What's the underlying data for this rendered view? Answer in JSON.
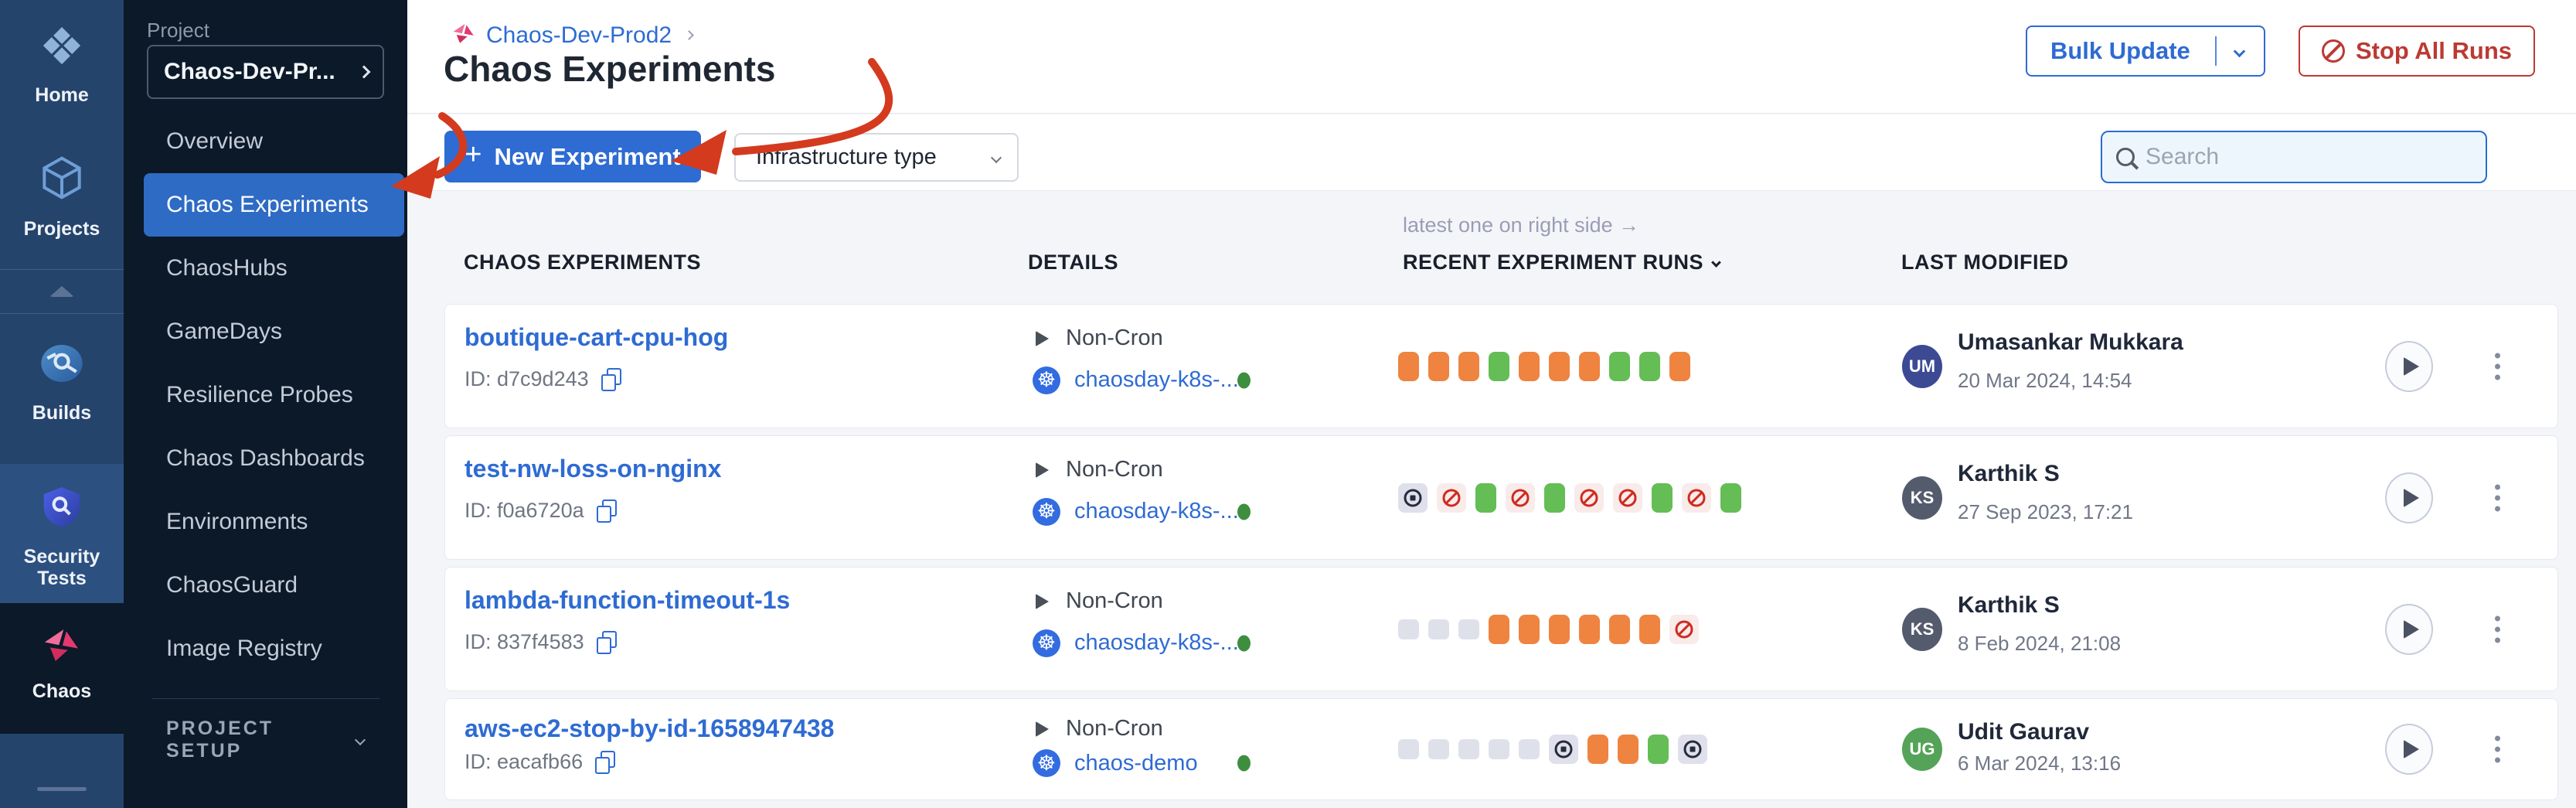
{
  "rail": {
    "items": [
      {
        "label": "Home",
        "icon": "harness-home-icon"
      },
      {
        "label": "Projects",
        "icon": "projects-cube-icon"
      },
      {
        "label": "Builds",
        "icon": "builds-circle-icon"
      },
      {
        "label": "Security Tests",
        "icon": "security-shield-icon"
      },
      {
        "label": "Chaos",
        "icon": "chaos-pinwheel-icon"
      }
    ]
  },
  "sidebar": {
    "project_label": "Project",
    "project_selector": "Chaos-Dev-Pr...",
    "items": [
      "Overview",
      "Chaos Experiments",
      "ChaosHubs",
      "GameDays",
      "Resilience Probes",
      "Chaos Dashboards",
      "Environments",
      "ChaosGuard",
      "Image Registry"
    ],
    "selected": "Chaos Experiments",
    "project_setup_label": "PROJECT SETUP"
  },
  "header": {
    "breadcrumb": "Chaos-Dev-Prod2",
    "title": "Chaos Experiments",
    "bulk_update_label": "Bulk Update",
    "stop_all_runs_label": "Stop All Runs"
  },
  "toolbar": {
    "plus": "+",
    "new_experiment_label": "New Experiment",
    "infrastructure_type_label": "Infrastructure type",
    "search_placeholder": "Search"
  },
  "table": {
    "note": "latest one on right side →",
    "columns": [
      "CHAOS EXPERIMENTS",
      "DETAILS",
      "RECENT EXPERIMENT RUNS",
      "LAST MODIFIED"
    ],
    "rows": [
      {
        "name": "boutique-cart-cpu-hog",
        "id": "ID: d7c9d243",
        "schedule": "Non-Cron",
        "infra": "chaosday-k8s-...",
        "runs": [
          "orange",
          "orange",
          "orange",
          "green",
          "orange",
          "orange",
          "orange",
          "green",
          "green",
          "orange"
        ],
        "user": "Umasankar Mukkara",
        "initials": "UM",
        "avatar_color": "#3c4a94",
        "date": "20 Mar 2024, 14:54"
      },
      {
        "name": "test-nw-loss-on-nginx",
        "id": "ID: f0a6720a",
        "schedule": "Non-Cron",
        "infra": "chaosday-k8s-...",
        "runs": [
          "stopped",
          "failed",
          "green",
          "failed",
          "green",
          "failed",
          "failed",
          "green",
          "failed",
          "green"
        ],
        "user": "Karthik S",
        "initials": "KS",
        "avatar_color": "#545b6d",
        "date": "27 Sep 2023, 17:21"
      },
      {
        "name": "lambda-function-timeout-1s",
        "id": "ID: 837f4583",
        "schedule": "Non-Cron",
        "infra": "chaosday-k8s-...",
        "runs": [
          "empty",
          "empty",
          "empty",
          "orange",
          "orange",
          "orange",
          "orange",
          "orange",
          "orange",
          "failed"
        ],
        "user": "Karthik S",
        "initials": "KS",
        "avatar_color": "#545b6d",
        "date": "8 Feb 2024, 21:08"
      },
      {
        "name": "aws-ec2-stop-by-id-1658947438",
        "id": "ID: eacafb66",
        "schedule": "Non-Cron",
        "infra": "chaos-demo",
        "runs": [
          "empty",
          "empty",
          "empty",
          "empty",
          "empty",
          "stopped",
          "orange",
          "orange",
          "green",
          "stopped"
        ],
        "user": "Udit Gaurav",
        "initials": "UG",
        "avatar_color": "#55a358",
        "date": "6 Mar 2024, 13:16"
      }
    ]
  },
  "icons": {
    "kubernetes": "k8s-wheel-icon",
    "copy": "copy-id-icon",
    "search": "magnifier-icon",
    "filter": "filter-sliders-icon",
    "stop": "no-entry-icon"
  },
  "colors": {
    "accent_blue": "#2e6bd3",
    "danger_red": "#bb3a33",
    "run_orange": "#ee8440",
    "run_green": "#64bd55",
    "run_failed_red": "#cf2a1e",
    "annotation_red": "#d43a1e",
    "rail_navy": "#24446c",
    "sidebar_dark": "#0b1928"
  }
}
